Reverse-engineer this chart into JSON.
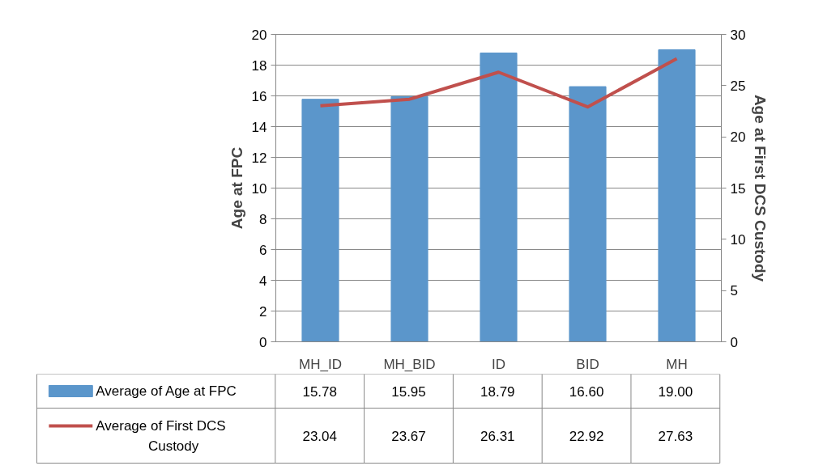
{
  "chart_data": {
    "type": "bar",
    "categories": [
      "MH_ID",
      "MH_BID",
      "ID",
      "BID",
      "MH"
    ],
    "ylabel": "Age at FPC",
    "y2label": "Age at First DCS Custody",
    "ylim": [
      0,
      20
    ],
    "yticks": [
      0,
      2,
      4,
      6,
      8,
      10,
      12,
      14,
      16,
      18,
      20
    ],
    "y2lim": [
      0,
      30
    ],
    "y2ticks": [
      0,
      5,
      10,
      15,
      20,
      25,
      30
    ],
    "grid": "y",
    "legend": "bottom left",
    "series": [
      {
        "name": "Average of Age at FPC",
        "color": "#5b96cb",
        "values": [
          15.78,
          15.95,
          18.79,
          16.6,
          19.0
        ],
        "value_labels": [
          "15.78",
          "15.95",
          "18.79",
          "16.60",
          "19.00"
        ]
      },
      {
        "name": "Average of First DCS Custody",
        "type": "line",
        "axis": "y2",
        "color": "#c0504d",
        "values": [
          23.04,
          23.67,
          26.31,
          22.92,
          27.63
        ],
        "value_labels": [
          "23.04",
          "23.67",
          "26.31",
          "22.92",
          "27.63"
        ]
      }
    ]
  }
}
